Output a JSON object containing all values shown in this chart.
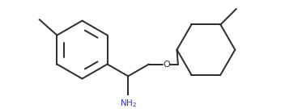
{
  "background": "#ffffff",
  "line_color": "#2b2b2b",
  "line_width": 1.4,
  "nh2_color": "#3333bb",
  "o_color": "#2b2b2b",
  "figsize": [
    3.52,
    1.35
  ],
  "dpi": 100,
  "bx": 0.82,
  "by": 0.62,
  "br": 0.46,
  "chx": 2.78,
  "chy": 0.62,
  "chr": 0.46
}
